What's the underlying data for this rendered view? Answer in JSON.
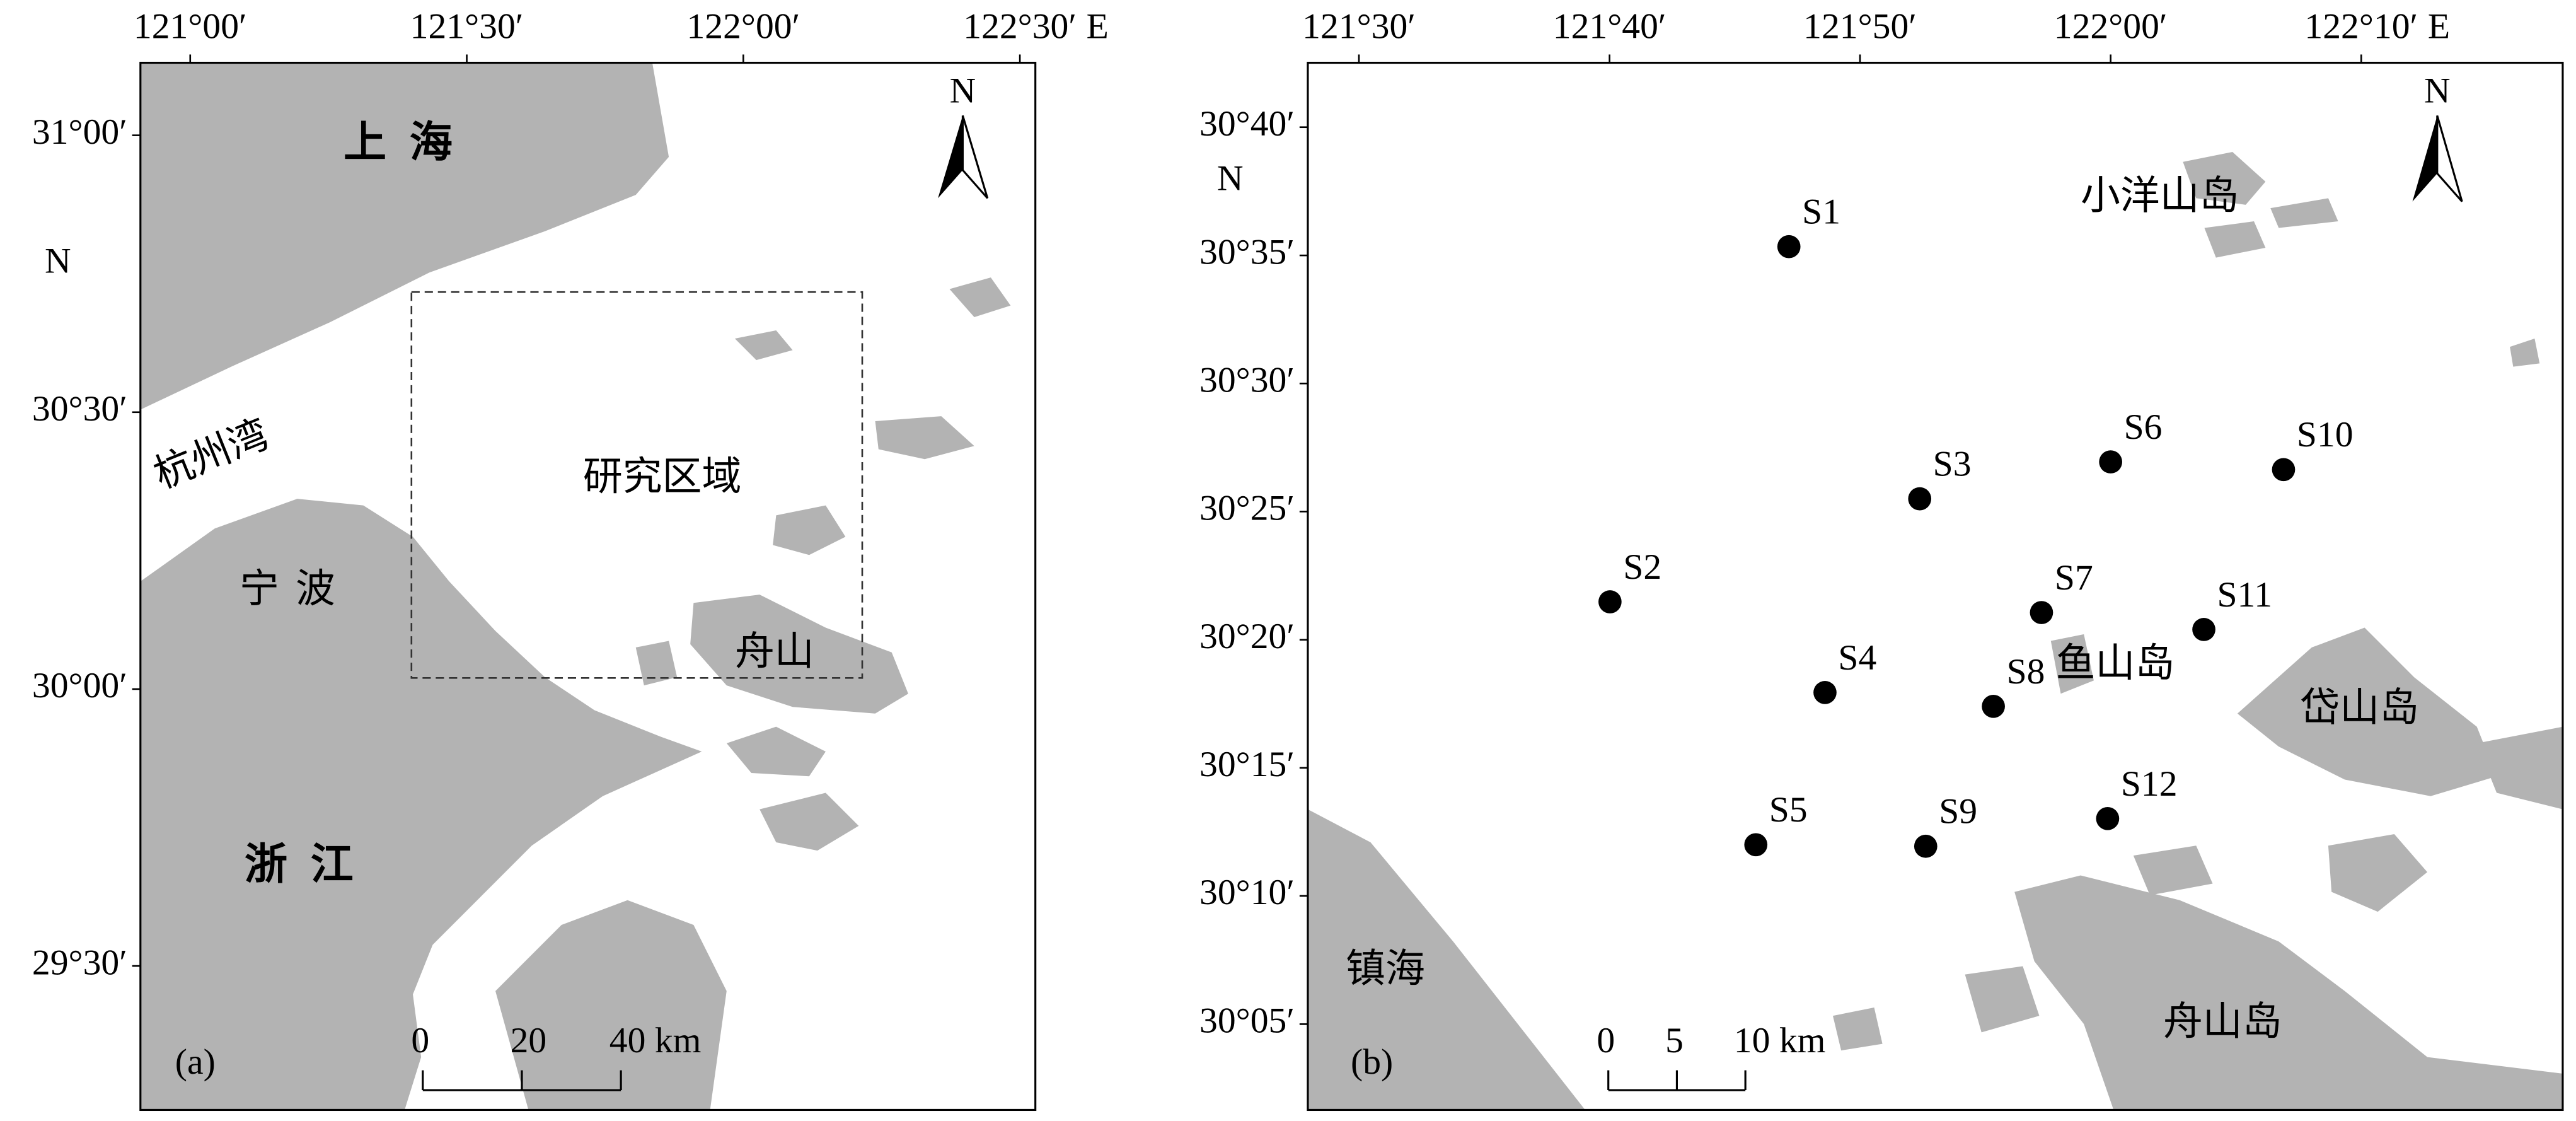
{
  "panel_a": {
    "label": "(a)",
    "x_axis_unit": "E",
    "y_axis_unit": "N",
    "north": "N",
    "xlim": [
      120.91,
      122.528
    ],
    "ylim": [
      29.24,
      31.131
    ],
    "xticks": [
      {
        "value": 121,
        "label": "121°00′"
      },
      {
        "value": 121.5,
        "label": "121°30′"
      },
      {
        "value": 122,
        "label": "122°00′"
      },
      {
        "value": 122.5,
        "label": "122°30′"
      }
    ],
    "yticks": [
      {
        "value": 31,
        "label": "31°00′"
      },
      {
        "value": 30.5,
        "label": "30°30′"
      },
      {
        "value": 30,
        "label": "30°00′"
      },
      {
        "value": 29.5,
        "label": "29°30′"
      }
    ],
    "place_labels": [
      "上海",
      "杭州湾",
      "宁波",
      "浙江",
      "舟山"
    ],
    "study_area": {
      "label": "研究区域",
      "lon": [
        121.4,
        122.215
      ],
      "lat": [
        30.02,
        30.717
      ]
    },
    "scale_bar": {
      "ticks": [
        0,
        20,
        {
          "value": 40,
          "label": "40 km"
        }
      ]
    }
  },
  "panel_b": {
    "label": "(b)",
    "x_axis_unit": "E",
    "y_axis_unit": "N",
    "north": "N",
    "xlim": [
      121.466,
      122.3007
    ],
    "ylim": [
      30.0275,
      30.7086
    ],
    "xticks": [
      {
        "value": 121.5,
        "label": "121°30′"
      },
      {
        "value": 121.6667,
        "label": "121°40′"
      },
      {
        "value": 121.8333,
        "label": "121°50′"
      },
      {
        "value": 122,
        "label": "122°00′"
      },
      {
        "value": 122.1667,
        "label": "122°10′"
      }
    ],
    "yticks": [
      {
        "value": 30.6667,
        "label": "30°40′"
      },
      {
        "value": 30.5833,
        "label": "30°35′"
      },
      {
        "value": 30.5,
        "label": "30°30′"
      },
      {
        "value": 30.4167,
        "label": "30°25′"
      },
      {
        "value": 30.3333,
        "label": "30°20′"
      },
      {
        "value": 30.25,
        "label": "30°15′"
      },
      {
        "value": 30.1667,
        "label": "30°10′"
      },
      {
        "value": 30.0833,
        "label": "30°05′"
      }
    ],
    "place_labels": [
      "小洋山岛",
      "鱼山岛",
      "岱山岛",
      "镇海",
      "舟山岛"
    ],
    "stations": [
      {
        "name": "S1",
        "lon": 121.786,
        "lat": 30.589
      },
      {
        "name": "S2",
        "lon": 121.667,
        "lat": 30.358
      },
      {
        "name": "S3",
        "lon": 121.873,
        "lat": 30.425
      },
      {
        "name": "S4",
        "lon": 121.81,
        "lat": 30.299
      },
      {
        "name": "S5",
        "lon": 121.764,
        "lat": 30.2
      },
      {
        "name": "S6",
        "lon": 122.0,
        "lat": 30.449
      },
      {
        "name": "S7",
        "lon": 121.954,
        "lat": 30.351
      },
      {
        "name": "S8",
        "lon": 121.922,
        "lat": 30.29
      },
      {
        "name": "S9",
        "lon": 121.877,
        "lat": 30.199
      },
      {
        "name": "S10",
        "lon": 122.115,
        "lat": 30.444
      },
      {
        "name": "S11",
        "lon": 122.062,
        "lat": 30.34
      },
      {
        "name": "S12",
        "lon": 121.998,
        "lat": 30.217
      }
    ],
    "scale_bar": {
      "ticks": [
        0,
        5,
        {
          "value": 10,
          "label": "10 km"
        }
      ]
    }
  }
}
